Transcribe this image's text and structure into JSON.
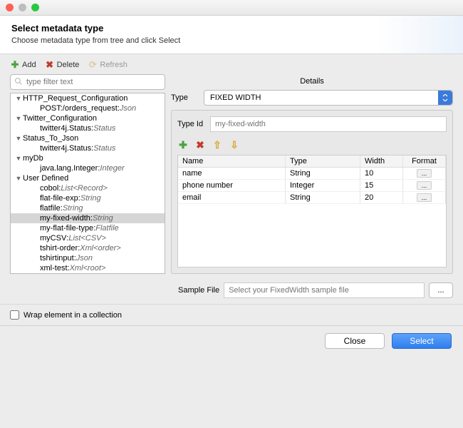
{
  "colors": {
    "red": "#ff5f57",
    "yellow": "#febc2e",
    "green": "#28c840",
    "accent": "#3b7adb"
  },
  "header": {
    "title": "Select metadata type",
    "subtitle": "Choose metadata type from tree and click Select"
  },
  "toolbar": {
    "add": "Add",
    "delete": "Delete",
    "refresh": "Refresh"
  },
  "filter": {
    "placeholder": "type filter text"
  },
  "tree": [
    {
      "level": 1,
      "expand": true,
      "label": "HTTP_Request_Configuration",
      "type": ""
    },
    {
      "level": 2,
      "expand": null,
      "label": "POST:/orders_request",
      "type": "Json"
    },
    {
      "level": 1,
      "expand": true,
      "label": "Twitter_Configuration",
      "type": ""
    },
    {
      "level": 2,
      "expand": null,
      "label": "twitter4j.Status",
      "type": "Status"
    },
    {
      "level": 1,
      "expand": true,
      "label": "Status_To_Json",
      "type": ""
    },
    {
      "level": 2,
      "expand": null,
      "label": "twitter4j.Status",
      "type": "Status"
    },
    {
      "level": 1,
      "expand": true,
      "label": "myDb",
      "type": ""
    },
    {
      "level": 2,
      "expand": null,
      "label": "java.lang.Integer",
      "type": "Integer"
    },
    {
      "level": 1,
      "expand": true,
      "label": "User Defined",
      "type": ""
    },
    {
      "level": 2,
      "expand": null,
      "label": "cobol",
      "type": "List<Record>"
    },
    {
      "level": 2,
      "expand": null,
      "label": "flat-file-exp",
      "type": "String"
    },
    {
      "level": 2,
      "expand": null,
      "label": "flatfile",
      "type": "String"
    },
    {
      "level": 2,
      "expand": null,
      "label": "my-fixed-width",
      "type": "String",
      "selected": true
    },
    {
      "level": 2,
      "expand": null,
      "label": "my-flat-file-type",
      "type": "Flatfile"
    },
    {
      "level": 2,
      "expand": null,
      "label": "myCSV",
      "type": "List<CSV>"
    },
    {
      "level": 2,
      "expand": null,
      "label": "tshirt-order",
      "type": "Xml<order>"
    },
    {
      "level": 2,
      "expand": null,
      "label": "tshirtinput",
      "type": "Json"
    },
    {
      "level": 2,
      "expand": null,
      "label": "xml-test",
      "type": "Xml<root>"
    }
  ],
  "details": {
    "title": "Details",
    "type_label": "Type",
    "type_value": "FIXED WIDTH",
    "typeid_label": "Type Id",
    "typeid_placeholder": "my-fixed-width",
    "columns": {
      "name": "Name",
      "type": "Type",
      "width": "Width",
      "format": "Format"
    },
    "rows": [
      {
        "name": "name",
        "type": "String",
        "width": "10"
      },
      {
        "name": "phone number",
        "type": "Integer",
        "width": "15"
      },
      {
        "name": "email",
        "type": "String",
        "width": "20"
      }
    ],
    "sample_label": "Sample File",
    "sample_placeholder": "Select your FixedWidth sample file",
    "browse": "..."
  },
  "wrap": {
    "label": "Wrap element in a collection",
    "checked": false
  },
  "footer": {
    "close": "Close",
    "select": "Select"
  }
}
